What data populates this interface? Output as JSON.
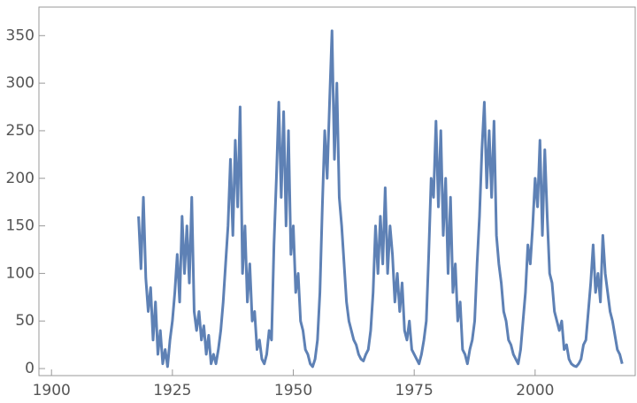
{
  "chart_data": {
    "type": "line",
    "color": "#5e81b5",
    "xlim": [
      1897.4,
      2020.7
    ],
    "ylim": [
      -7.4,
      380
    ],
    "xticks": [
      1900,
      1925,
      1950,
      1975,
      2000
    ],
    "yticks": [
      0,
      50,
      100,
      150,
      200,
      250,
      300,
      350
    ],
    "grid": false,
    "x": [
      1918.0,
      1918.5,
      1919.0,
      1919.5,
      1920.0,
      1920.5,
      1921.0,
      1921.5,
      1922.0,
      1922.5,
      1923.0,
      1923.5,
      1924.0,
      1924.5,
      1925.0,
      1925.5,
      1926.0,
      1926.5,
      1927.0,
      1927.5,
      1928.0,
      1928.5,
      1929.0,
      1929.5,
      1930.0,
      1930.5,
      1931.0,
      1931.5,
      1932.0,
      1932.5,
      1933.0,
      1933.5,
      1934.0,
      1934.5,
      1935.0,
      1935.5,
      1936.0,
      1936.5,
      1937.0,
      1937.5,
      1938.0,
      1938.5,
      1939.0,
      1939.5,
      1940.0,
      1940.5,
      1941.0,
      1941.5,
      1942.0,
      1942.5,
      1943.0,
      1943.5,
      1944.0,
      1944.5,
      1945.0,
      1945.5,
      1946.0,
      1946.5,
      1947.0,
      1947.5,
      1948.0,
      1948.5,
      1949.0,
      1949.5,
      1950.0,
      1950.5,
      1951.0,
      1951.5,
      1952.0,
      1952.5,
      1953.0,
      1953.5,
      1954.0,
      1954.5,
      1955.0,
      1955.5,
      1956.0,
      1956.5,
      1957.0,
      1957.5,
      1958.0,
      1958.5,
      1959.0,
      1959.5,
      1960.0,
      1960.5,
      1961.0,
      1961.5,
      1962.0,
      1962.5,
      1963.0,
      1963.5,
      1964.0,
      1964.5,
      1965.0,
      1965.5,
      1966.0,
      1966.5,
      1967.0,
      1967.5,
      1968.0,
      1968.5,
      1969.0,
      1969.5,
      1970.0,
      1970.5,
      1971.0,
      1971.5,
      1972.0,
      1972.5,
      1973.0,
      1973.5,
      1974.0,
      1974.5,
      1975.0,
      1975.5,
      1976.0,
      1976.5,
      1977.0,
      1977.5,
      1978.0,
      1978.5,
      1979.0,
      1979.5,
      1980.0,
      1980.5,
      1981.0,
      1981.5,
      1982.0,
      1982.5,
      1983.0,
      1983.5,
      1984.0,
      1984.5,
      1985.0,
      1985.5,
      1986.0,
      1986.5,
      1987.0,
      1987.5,
      1988.0,
      1988.5,
      1989.0,
      1989.5,
      1990.0,
      1990.5,
      1991.0,
      1991.5,
      1992.0,
      1992.5,
      1993.0,
      1993.5,
      1994.0,
      1994.5,
      1995.0,
      1995.5,
      1996.0,
      1996.5,
      1997.0,
      1997.5,
      1998.0,
      1998.5,
      1999.0,
      1999.5,
      2000.0,
      2000.5,
      2001.0,
      2001.5,
      2002.0,
      2002.5,
      2003.0,
      2003.5,
      2004.0,
      2004.5,
      2005.0,
      2005.5,
      2006.0,
      2006.5,
      2007.0,
      2007.5,
      2008.0,
      2008.5,
      2009.0,
      2009.5,
      2010.0,
      2010.5,
      2011.0,
      2011.5,
      2012.0,
      2012.5,
      2013.0,
      2013.5,
      2014.0,
      2014.5,
      2015.0,
      2015.5,
      2016.0,
      2016.5,
      2017.0,
      2017.5,
      2018.0
    ],
    "values": [
      160,
      105,
      180,
      95,
      60,
      85,
      30,
      70,
      15,
      40,
      5,
      20,
      2,
      30,
      50,
      80,
      120,
      70,
      160,
      100,
      150,
      90,
      180,
      60,
      40,
      60,
      30,
      45,
      15,
      35,
      5,
      15,
      5,
      20,
      40,
      70,
      110,
      150,
      220,
      140,
      240,
      170,
      275,
      100,
      150,
      70,
      110,
      50,
      60,
      20,
      30,
      10,
      5,
      15,
      40,
      30,
      130,
      200,
      280,
      180,
      270,
      150,
      250,
      120,
      150,
      80,
      100,
      50,
      40,
      20,
      15,
      5,
      2,
      10,
      30,
      80,
      170,
      250,
      200,
      280,
      355,
      220,
      300,
      180,
      150,
      110,
      70,
      50,
      40,
      30,
      25,
      15,
      10,
      8,
      15,
      20,
      40,
      80,
      150,
      100,
      160,
      110,
      190,
      100,
      150,
      120,
      70,
      100,
      60,
      90,
      40,
      30,
      50,
      20,
      15,
      10,
      5,
      15,
      30,
      50,
      120,
      200,
      180,
      260,
      170,
      250,
      140,
      200,
      100,
      180,
      80,
      110,
      50,
      70,
      20,
      15,
      5,
      20,
      30,
      50,
      110,
      160,
      230,
      280,
      190,
      250,
      180,
      260,
      140,
      110,
      90,
      60,
      50,
      30,
      25,
      15,
      10,
      5,
      20,
      50,
      80,
      130,
      110,
      150,
      200,
      170,
      240,
      140,
      230,
      160,
      100,
      90,
      60,
      50,
      40,
      50,
      20,
      25,
      10,
      5,
      3,
      2,
      5,
      10,
      25,
      30,
      60,
      90,
      130,
      80,
      100,
      70,
      140,
      100,
      80,
      60,
      50,
      35,
      20,
      15,
      5
    ]
  }
}
